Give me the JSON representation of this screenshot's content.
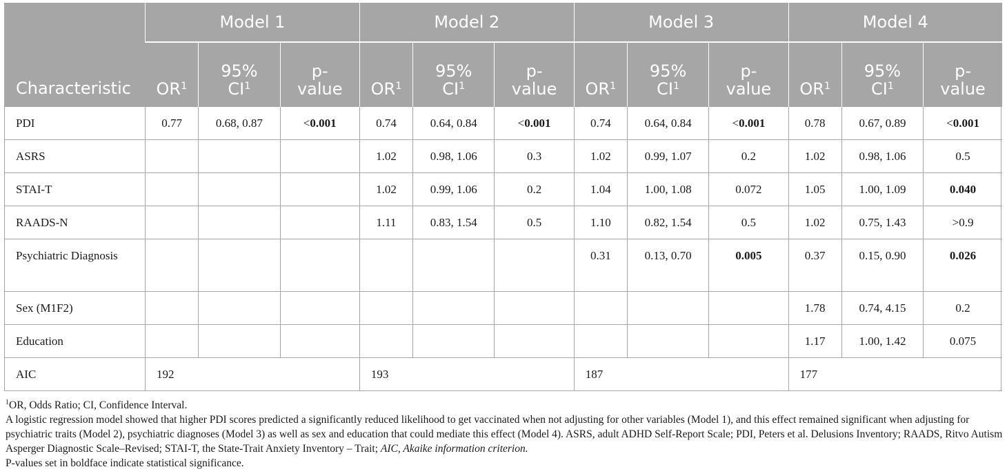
{
  "header": {
    "characteristic": "Characteristic",
    "models": [
      "Model 1",
      "Model 2",
      "Model 3",
      "Model 4"
    ],
    "col_or": "OR",
    "col_ci_line1": "95%",
    "col_ci_line2": "CI",
    "col_p_line1": "p-",
    "col_p_line2": "value",
    "footnote_marker": "1"
  },
  "rows": [
    {
      "label": "PDI",
      "cells": [
        "0.77",
        "0.68, 0.87",
        "<0.001",
        "0.74",
        "0.64, 0.84",
        "<0.001",
        "0.74",
        "0.64, 0.84",
        "<0.001",
        "0.78",
        "0.67, 0.89",
        "<0.001"
      ]
    },
    {
      "label": "ASRS",
      "cells": [
        "",
        "",
        "",
        "1.02",
        "0.98, 1.06",
        "0.3",
        "1.02",
        "0.99, 1.07",
        "0.2",
        "1.02",
        "0.98, 1.06",
        "0.5"
      ]
    },
    {
      "label": "STAI-T",
      "cells": [
        "",
        "",
        "",
        "1.02",
        "0.99, 1.06",
        "0.2",
        "1.04",
        "1.00, 1.08",
        "0.072",
        "1.05",
        "1.00, 1.09",
        "0.040"
      ]
    },
    {
      "label": "RAADS-N",
      "cells": [
        "",
        "",
        "",
        "1.11",
        "0.83, 1.54",
        "0.5",
        "1.10",
        "0.82, 1.54",
        "0.5",
        "1.02",
        "0.75, 1.43",
        ">0.9"
      ]
    },
    {
      "label": "Psychiatric Diagnosis",
      "cells": [
        "",
        "",
        "",
        "",
        "",
        "",
        "0.31",
        "0.13, 0.70",
        "0.005",
        "0.37",
        "0.15, 0.90",
        "0.026"
      ]
    },
    {
      "label": "Sex (M1F2)",
      "cells": [
        "",
        "",
        "",
        "",
        "",
        "",
        "",
        "",
        "",
        "1.78",
        "0.74, 4.15",
        "0.2"
      ]
    },
    {
      "label": "Education",
      "cells": [
        "",
        "",
        "",
        "",
        "",
        "",
        "",
        "",
        "",
        "1.17",
        "1.00, 1.42",
        "0.075"
      ]
    }
  ],
  "aic": {
    "label": "AIC",
    "values": [
      "192",
      "193",
      "187",
      "177"
    ]
  },
  "notes": {
    "fn_marker": "1",
    "fn_text": "OR, Odds Ratio; CI, Confidence Interval.",
    "para_main": "A logistic regression model showed that higher PDI scores predicted a significantly reduced likelihood to get vaccinated when not adjusting for other variables (Model 1), and this effect remained significant when adjusting for psychiatric traits (Model 2), psychiatric diagnoses (Model 3) as well as sex and education that could mediate this effect (Model 4). ASRS, adult ADHD Self-Report Scale; PDI, Peters et al. Delusions Inventory; RAADS, Ritvo Autism Asperger Diagnostic Scale–Revised; STAI-T, the State-Trait Anxiety Inventory – Trait;",
    "para_italic": "AIC, Akaike information criterion.",
    "para_last": "P-values set in boldface indicate statistical significance."
  }
}
